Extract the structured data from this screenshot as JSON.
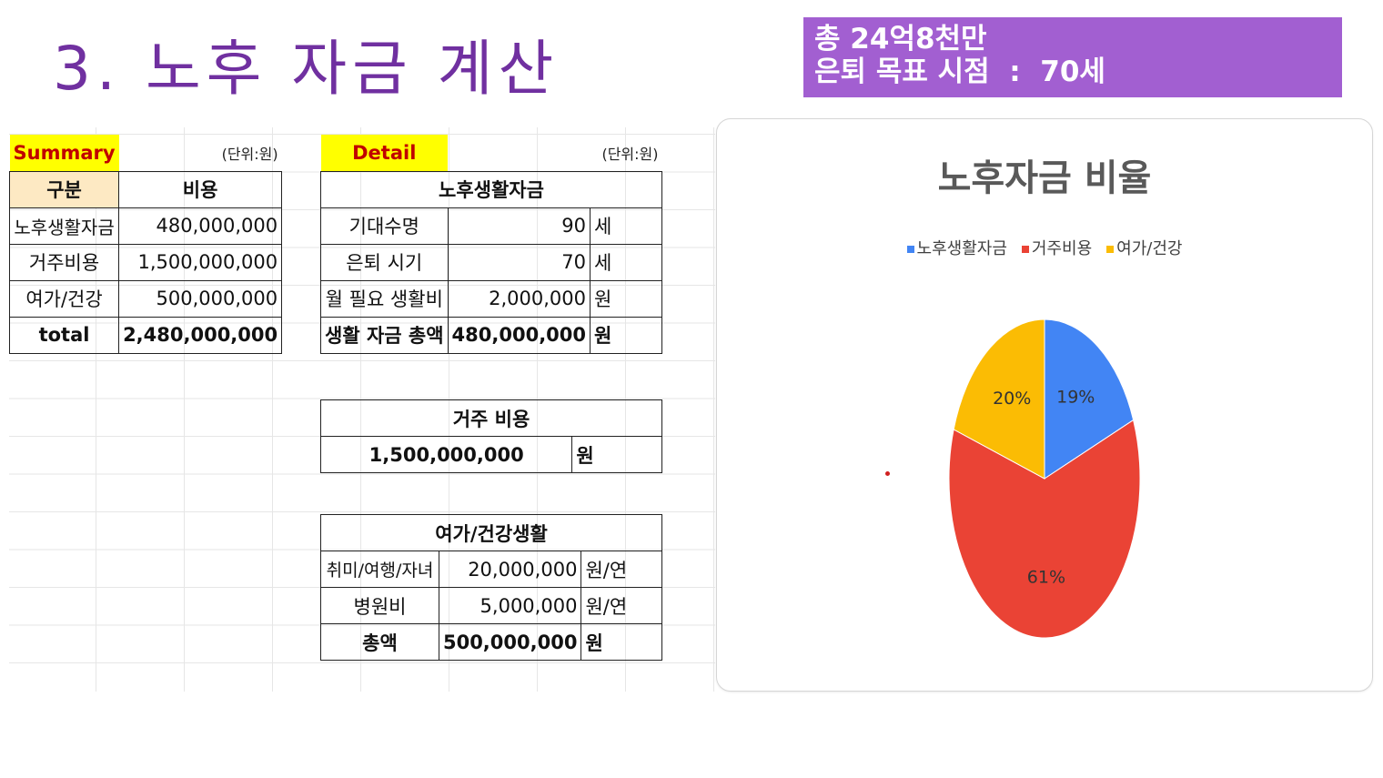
{
  "slide": {
    "title": "3. 노후 자금 계산",
    "banner": "총 24억8천만\n은퇴 목표 시점  :  70세",
    "banner_color": "#a25fd1",
    "title_color": "#7030a0"
  },
  "summary": {
    "tag": "Summary",
    "unit": "(단위:원)",
    "headers": [
      "구분",
      "비용"
    ],
    "rows": [
      {
        "label": "노후생활자금",
        "value": "480,000,000"
      },
      {
        "label": "거주비용",
        "value": "1,500,000,000"
      },
      {
        "label": "여가/건강",
        "value": "500,000,000"
      },
      {
        "label": "total",
        "value": "2,480,000,000"
      }
    ]
  },
  "detail": {
    "tag": "Detail",
    "unit": "(단위:원)",
    "living": {
      "title": "노후생활자금",
      "rows": [
        {
          "label": "기대수명",
          "value": "90",
          "unit": "세"
        },
        {
          "label": "은퇴 시기",
          "value": "70",
          "unit": "세"
        },
        {
          "label": "월 필요 생활비",
          "value": "2,000,000",
          "unit": "원"
        },
        {
          "label": "생활 자금 총액",
          "value": "480,000,000",
          "unit": "원"
        }
      ]
    },
    "housing": {
      "title": "거주 비용",
      "value": "1,500,000,000",
      "unit": "원"
    },
    "leisure": {
      "title": "여가/건강생활",
      "rows": [
        {
          "label": "취미/여행/자녀",
          "value": "20,000,000",
          "unit": "원/연"
        },
        {
          "label": "병원비",
          "value": "5,000,000",
          "unit": "원/연"
        },
        {
          "label": "총액",
          "value": "500,000,000",
          "unit": "원"
        }
      ]
    }
  },
  "chart_data": {
    "type": "pie",
    "title": "노후자금 비율",
    "legend_position": "top",
    "labels": [
      "노후생활자금",
      "거주비용",
      "여가/건강"
    ],
    "values": [
      19,
      61,
      20
    ],
    "data_labels": [
      "19%",
      "61%",
      "20%"
    ],
    "colors": [
      "#4285f4",
      "#ea4335",
      "#fbbc04"
    ]
  }
}
